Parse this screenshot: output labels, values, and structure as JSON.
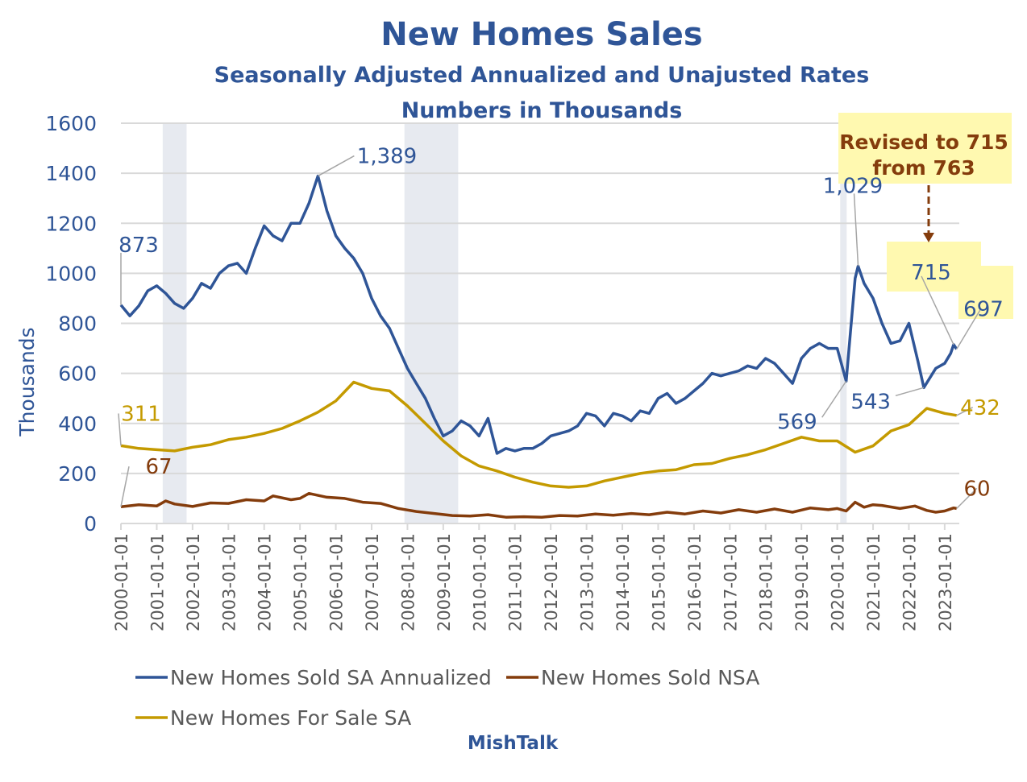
{
  "chart_data": {
    "type": "line",
    "title": "New Homes Sales",
    "subtitle": "Seasonally Adjusted Annualized and Unajusted Rates",
    "subtitle2": "Numbers in Thousands",
    "ylabel": "Thousands",
    "xlabel": "",
    "ylim": [
      0,
      1600
    ],
    "yticks": [
      "0",
      "200",
      "400",
      "600",
      "800",
      "1000",
      "1200",
      "1400",
      "1600"
    ],
    "xticks": [
      "2000-01-01",
      "2001-01-01",
      "2002-01-01",
      "2003-01-01",
      "2004-01-01",
      "2005-01-01",
      "2006-01-01",
      "2007-01-01",
      "2008-01-01",
      "2009-01-01",
      "2010-01-01",
      "2011-01-01",
      "2012-01-01",
      "2013-01-01",
      "2014-01-01",
      "2015-01-01",
      "2016-01-01",
      "2017-01-01",
      "2018-01-01",
      "2019-01-01",
      "2020-01-01",
      "2021-01-01",
      "2022-01-01",
      "2023-01-01"
    ],
    "grid": true,
    "legend_position": "bottom",
    "recessions": [
      [
        "2001-03",
        "2001-11"
      ],
      [
        "2007-12",
        "2009-06"
      ],
      [
        "2020-02",
        "2020-04"
      ]
    ],
    "series": [
      {
        "name": "New Homes Sold SA Annualized",
        "color": "#2f5597",
        "points": [
          [
            "2000-01",
            873
          ],
          [
            "2000-04",
            830
          ],
          [
            "2000-07",
            870
          ],
          [
            "2000-10",
            930
          ],
          [
            "2001-01",
            950
          ],
          [
            "2001-04",
            920
          ],
          [
            "2001-07",
            880
          ],
          [
            "2001-10",
            860
          ],
          [
            "2002-01",
            900
          ],
          [
            "2002-04",
            960
          ],
          [
            "2002-07",
            940
          ],
          [
            "2002-10",
            1000
          ],
          [
            "2003-01",
            1030
          ],
          [
            "2003-04",
            1040
          ],
          [
            "2003-07",
            1000
          ],
          [
            "2003-10",
            1100
          ],
          [
            "2004-01",
            1190
          ],
          [
            "2004-04",
            1150
          ],
          [
            "2004-07",
            1130
          ],
          [
            "2004-10",
            1200
          ],
          [
            "2005-01",
            1200
          ],
          [
            "2005-04",
            1280
          ],
          [
            "2005-07",
            1389
          ],
          [
            "2005-10",
            1250
          ],
          [
            "2006-01",
            1150
          ],
          [
            "2006-04",
            1100
          ],
          [
            "2006-07",
            1060
          ],
          [
            "2006-10",
            1000
          ],
          [
            "2007-01",
            900
          ],
          [
            "2007-04",
            830
          ],
          [
            "2007-07",
            780
          ],
          [
            "2007-10",
            700
          ],
          [
            "2008-01",
            620
          ],
          [
            "2008-04",
            560
          ],
          [
            "2008-07",
            500
          ],
          [
            "2008-10",
            420
          ],
          [
            "2009-01",
            350
          ],
          [
            "2009-04",
            370
          ],
          [
            "2009-07",
            410
          ],
          [
            "2009-10",
            390
          ],
          [
            "2010-01",
            350
          ],
          [
            "2010-04",
            420
          ],
          [
            "2010-07",
            280
          ],
          [
            "2010-10",
            300
          ],
          [
            "2011-01",
            290
          ],
          [
            "2011-04",
            300
          ],
          [
            "2011-07",
            300
          ],
          [
            "2011-10",
            320
          ],
          [
            "2012-01",
            350
          ],
          [
            "2012-04",
            360
          ],
          [
            "2012-07",
            370
          ],
          [
            "2012-10",
            390
          ],
          [
            "2013-01",
            440
          ],
          [
            "2013-04",
            430
          ],
          [
            "2013-07",
            390
          ],
          [
            "2013-10",
            440
          ],
          [
            "2014-01",
            430
          ],
          [
            "2014-04",
            410
          ],
          [
            "2014-07",
            450
          ],
          [
            "2014-10",
            440
          ],
          [
            "2015-01",
            500
          ],
          [
            "2015-04",
            520
          ],
          [
            "2015-07",
            480
          ],
          [
            "2015-10",
            500
          ],
          [
            "2016-01",
            530
          ],
          [
            "2016-04",
            560
          ],
          [
            "2016-07",
            600
          ],
          [
            "2016-10",
            590
          ],
          [
            "2017-01",
            600
          ],
          [
            "2017-04",
            610
          ],
          [
            "2017-07",
            630
          ],
          [
            "2017-10",
            620
          ],
          [
            "2018-01",
            660
          ],
          [
            "2018-04",
            640
          ],
          [
            "2018-07",
            600
          ],
          [
            "2018-10",
            560
          ],
          [
            "2019-01",
            660
          ],
          [
            "2019-04",
            700
          ],
          [
            "2019-07",
            720
          ],
          [
            "2019-10",
            700
          ],
          [
            "2020-01",
            700
          ],
          [
            "2020-04",
            569
          ],
          [
            "2020-07",
            980
          ],
          [
            "2020-08",
            1029
          ],
          [
            "2020-10",
            960
          ],
          [
            "2021-01",
            900
          ],
          [
            "2021-04",
            800
          ],
          [
            "2021-07",
            720
          ],
          [
            "2021-10",
            730
          ],
          [
            "2022-01",
            800
          ],
          [
            "2022-04",
            650
          ],
          [
            "2022-06",
            543
          ],
          [
            "2022-10",
            620
          ],
          [
            "2023-01",
            640
          ],
          [
            "2023-03",
            680
          ],
          [
            "2023-04",
            715
          ],
          [
            "2023-05",
            697
          ]
        ]
      },
      {
        "name": "New Homes Sold NSA",
        "color": "#843c0c",
        "points": [
          [
            "2000-01",
            67
          ],
          [
            "2000-07",
            75
          ],
          [
            "2001-01",
            70
          ],
          [
            "2001-04",
            90
          ],
          [
            "2001-07",
            78
          ],
          [
            "2002-01",
            68
          ],
          [
            "2002-07",
            82
          ],
          [
            "2003-01",
            80
          ],
          [
            "2003-07",
            95
          ],
          [
            "2004-01",
            90
          ],
          [
            "2004-04",
            110
          ],
          [
            "2004-10",
            95
          ],
          [
            "2005-01",
            100
          ],
          [
            "2005-04",
            120
          ],
          [
            "2005-10",
            105
          ],
          [
            "2006-04",
            100
          ],
          [
            "2006-10",
            85
          ],
          [
            "2007-04",
            80
          ],
          [
            "2007-10",
            60
          ],
          [
            "2008-04",
            48
          ],
          [
            "2008-10",
            40
          ],
          [
            "2009-04",
            32
          ],
          [
            "2009-10",
            30
          ],
          [
            "2010-04",
            35
          ],
          [
            "2010-10",
            25
          ],
          [
            "2011-04",
            27
          ],
          [
            "2011-10",
            25
          ],
          [
            "2012-04",
            32
          ],
          [
            "2012-10",
            30
          ],
          [
            "2013-04",
            38
          ],
          [
            "2013-10",
            33
          ],
          [
            "2014-04",
            40
          ],
          [
            "2014-10",
            35
          ],
          [
            "2015-04",
            45
          ],
          [
            "2015-10",
            38
          ],
          [
            "2016-04",
            50
          ],
          [
            "2016-10",
            42
          ],
          [
            "2017-04",
            55
          ],
          [
            "2017-10",
            45
          ],
          [
            "2018-04",
            58
          ],
          [
            "2018-10",
            45
          ],
          [
            "2019-04",
            62
          ],
          [
            "2019-10",
            55
          ],
          [
            "2020-01",
            60
          ],
          [
            "2020-04",
            50
          ],
          [
            "2020-07",
            85
          ],
          [
            "2020-10",
            65
          ],
          [
            "2021-01",
            75
          ],
          [
            "2021-04",
            72
          ],
          [
            "2021-10",
            60
          ],
          [
            "2022-03",
            70
          ],
          [
            "2022-07",
            52
          ],
          [
            "2022-10",
            45
          ],
          [
            "2023-01",
            50
          ],
          [
            "2023-04",
            62
          ],
          [
            "2023-05",
            60
          ]
        ]
      },
      {
        "name": "New Homes For Sale SA",
        "color": "#c49a00",
        "points": [
          [
            "2000-01",
            311
          ],
          [
            "2000-07",
            300
          ],
          [
            "2001-01",
            295
          ],
          [
            "2001-07",
            290
          ],
          [
            "2002-01",
            305
          ],
          [
            "2002-07",
            315
          ],
          [
            "2003-01",
            335
          ],
          [
            "2003-07",
            345
          ],
          [
            "2004-01",
            360
          ],
          [
            "2004-07",
            380
          ],
          [
            "2005-01",
            410
          ],
          [
            "2005-07",
            445
          ],
          [
            "2006-01",
            490
          ],
          [
            "2006-07",
            565
          ],
          [
            "2007-01",
            540
          ],
          [
            "2007-07",
            530
          ],
          [
            "2008-01",
            470
          ],
          [
            "2008-07",
            400
          ],
          [
            "2009-01",
            330
          ],
          [
            "2009-07",
            270
          ],
          [
            "2010-01",
            230
          ],
          [
            "2010-07",
            210
          ],
          [
            "2011-01",
            185
          ],
          [
            "2011-07",
            165
          ],
          [
            "2012-01",
            150
          ],
          [
            "2012-07",
            145
          ],
          [
            "2013-01",
            150
          ],
          [
            "2013-07",
            170
          ],
          [
            "2014-01",
            185
          ],
          [
            "2014-07",
            200
          ],
          [
            "2015-01",
            210
          ],
          [
            "2015-07",
            215
          ],
          [
            "2016-01",
            235
          ],
          [
            "2016-07",
            240
          ],
          [
            "2017-01",
            260
          ],
          [
            "2017-07",
            275
          ],
          [
            "2018-01",
            295
          ],
          [
            "2018-07",
            320
          ],
          [
            "2019-01",
            345
          ],
          [
            "2019-07",
            330
          ],
          [
            "2020-01",
            330
          ],
          [
            "2020-07",
            285
          ],
          [
            "2021-01",
            310
          ],
          [
            "2021-07",
            370
          ],
          [
            "2022-01",
            395
          ],
          [
            "2022-07",
            460
          ],
          [
            "2023-01",
            440
          ],
          [
            "2023-05",
            432
          ]
        ]
      }
    ],
    "annotations": [
      {
        "series": 0,
        "date": "2000-01",
        "label": "873"
      },
      {
        "series": 0,
        "date": "2005-07",
        "label": "1,389"
      },
      {
        "series": 0,
        "date": "2020-04",
        "label": "569"
      },
      {
        "series": 0,
        "date": "2020-08",
        "label": "1,029"
      },
      {
        "series": 0,
        "date": "2022-06",
        "label": "543"
      },
      {
        "series": 0,
        "date": "2023-04",
        "label": "715"
      },
      {
        "series": 0,
        "date": "2023-05",
        "label": "697"
      },
      {
        "series": 2,
        "date": "2000-01",
        "label": "311"
      },
      {
        "series": 2,
        "date": "2023-05",
        "label": "432"
      },
      {
        "series": 1,
        "date": "2000-01",
        "label": "67"
      },
      {
        "series": 1,
        "date": "2023-05",
        "label": "60"
      }
    ],
    "callout": {
      "line1": "Revised to 715",
      "line2": "from 763"
    },
    "source": "MishTalk"
  },
  "colors": {
    "title": "#2f5597",
    "callout_text": "#843c0c",
    "callout_bg": "#fff9b0",
    "recession": "#e7eaf0",
    "grid": "#d9d9d9"
  }
}
